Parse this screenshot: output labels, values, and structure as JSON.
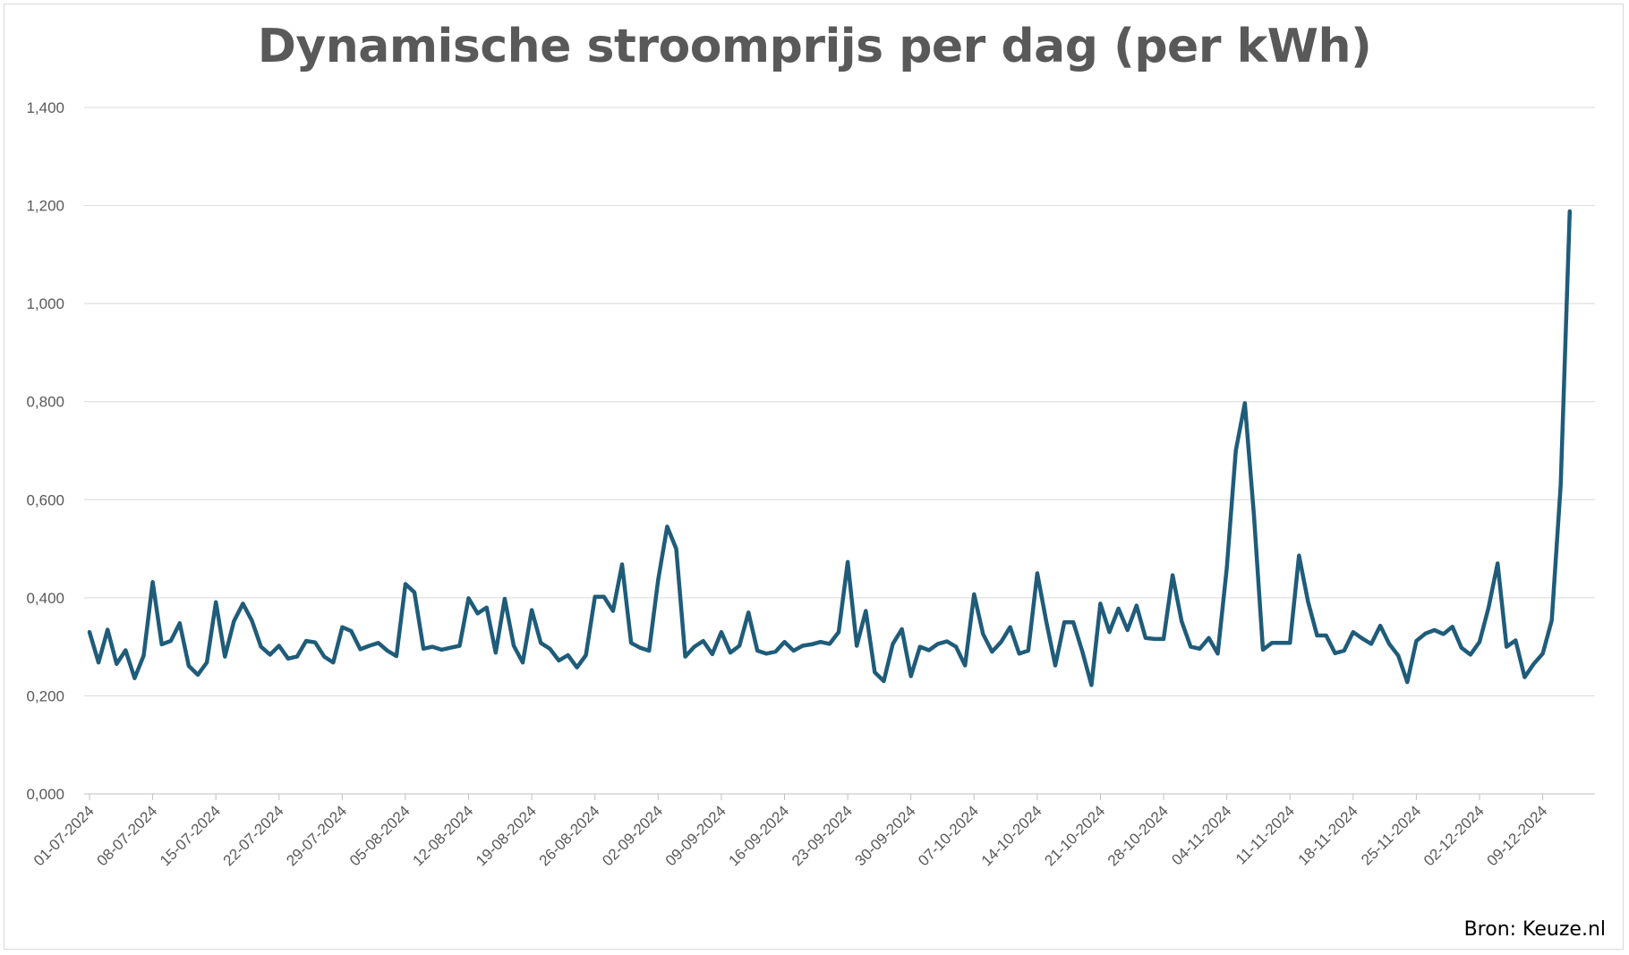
{
  "chart_data": {
    "type": "line",
    "title": "Dynamische stroomprijs per dag (per kWh)",
    "xlabel": "",
    "ylabel": "",
    "ylim": [
      0,
      1.4
    ],
    "yticks": [
      0,
      0.2,
      0.4,
      0.6,
      0.8,
      1.0,
      1.2,
      1.4
    ],
    "ytick_labels": [
      "0,000",
      "0,200",
      "0,400",
      "0,600",
      "0,800",
      "1,000",
      "1,200",
      "1,400"
    ],
    "x_start": "01-07-2024",
    "x_end": "14-12-2024",
    "xtick_labels": [
      "01-07-2024",
      "08-07-2024",
      "15-07-2024",
      "22-07-2024",
      "29-07-2024",
      "05-08-2024",
      "12-08-2024",
      "19-08-2024",
      "26-08-2024",
      "02-09-2024",
      "09-09-2024",
      "16-09-2024",
      "23-09-2024",
      "30-09-2024",
      "07-10-2024",
      "14-10-2024",
      "21-10-2024",
      "28-10-2024",
      "04-11-2024",
      "11-11-2024",
      "18-11-2024",
      "25-11-2024",
      "02-12-2024",
      "09-12-2024"
    ],
    "grid": true,
    "legend": "none",
    "series": [
      {
        "color": "#1f5c7a",
        "values": [
          0.33,
          0.268,
          0.335,
          0.265,
          0.293,
          0.236,
          0.282,
          0.432,
          0.305,
          0.312,
          0.348,
          0.261,
          0.243,
          0.268,
          0.391,
          0.28,
          0.352,
          0.388,
          0.353,
          0.3,
          0.284,
          0.302,
          0.276,
          0.28,
          0.312,
          0.309,
          0.28,
          0.268,
          0.34,
          0.332,
          0.295,
          0.302,
          0.308,
          0.292,
          0.281,
          0.428,
          0.411,
          0.296,
          0.3,
          0.294,
          0.298,
          0.302,
          0.399,
          0.368,
          0.38,
          0.288,
          0.398,
          0.302,
          0.268,
          0.375,
          0.308,
          0.296,
          0.272,
          0.283,
          0.258,
          0.283,
          0.402,
          0.402,
          0.373,
          0.468,
          0.308,
          0.298,
          0.292,
          0.436,
          0.545,
          0.5,
          0.28,
          0.3,
          0.312,
          0.285,
          0.33,
          0.288,
          0.302,
          0.37,
          0.292,
          0.286,
          0.29,
          0.31,
          0.292,
          0.302,
          0.305,
          0.31,
          0.306,
          0.33,
          0.473,
          0.302,
          0.373,
          0.248,
          0.23,
          0.306,
          0.336,
          0.24,
          0.3,
          0.293,
          0.306,
          0.311,
          0.3,
          0.262,
          0.407,
          0.326,
          0.29,
          0.31,
          0.34,
          0.286,
          0.292,
          0.45,
          0.352,
          0.262,
          0.35,
          0.35,
          0.29,
          0.222,
          0.388,
          0.33,
          0.378,
          0.334,
          0.384,
          0.318,
          0.316,
          0.316,
          0.446,
          0.352,
          0.3,
          0.296,
          0.318,
          0.286,
          0.46,
          0.7,
          0.797,
          0.57,
          0.294,
          0.308,
          0.308,
          0.308,
          0.486,
          0.392,
          0.323,
          0.323,
          0.287,
          0.292,
          0.33,
          0.317,
          0.306,
          0.343,
          0.306,
          0.282,
          0.228,
          0.312,
          0.327,
          0.334,
          0.326,
          0.341,
          0.298,
          0.284,
          0.31,
          0.38,
          0.47,
          0.3,
          0.313,
          0.238,
          0.265,
          0.286,
          0.354,
          0.63,
          1.188
        ]
      }
    ]
  },
  "source": "Bron: Keuze.nl"
}
